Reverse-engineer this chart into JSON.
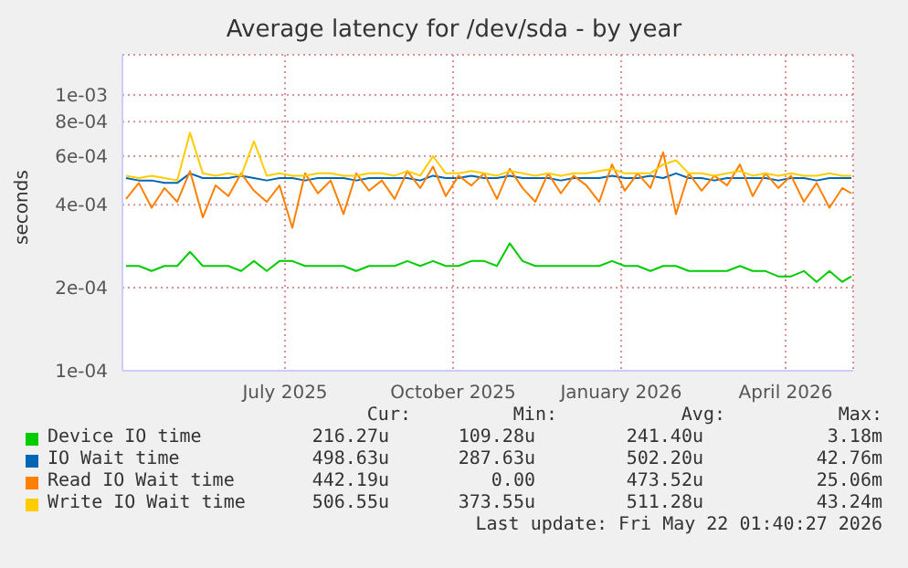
{
  "chart_data": {
    "type": "line",
    "title": "Average latency for /dev/sda - by year",
    "ylabel": "seconds",
    "x": [
      "2025-04-19",
      "2025-04-26",
      "2025-05-03",
      "2025-05-10",
      "2025-05-17",
      "2025-05-24",
      "2025-05-31",
      "2025-06-07",
      "2025-06-14",
      "2025-06-21",
      "2025-06-28",
      "2025-07-05",
      "2025-07-12",
      "2025-07-19",
      "2025-07-26",
      "2025-08-02",
      "2025-08-09",
      "2025-08-16",
      "2025-08-23",
      "2025-08-30",
      "2025-09-06",
      "2025-09-13",
      "2025-09-20",
      "2025-09-27",
      "2025-10-04",
      "2025-10-11",
      "2025-10-18",
      "2025-10-25",
      "2025-11-01",
      "2025-11-08",
      "2025-11-15",
      "2025-11-22",
      "2025-11-29",
      "2025-12-06",
      "2025-12-13",
      "2025-12-20",
      "2025-12-27",
      "2026-01-03",
      "2026-01-10",
      "2026-01-17",
      "2026-01-24",
      "2026-01-31",
      "2026-02-07",
      "2026-02-14",
      "2026-02-21",
      "2026-02-28",
      "2026-03-07",
      "2026-03-14",
      "2026-03-21",
      "2026-03-28",
      "2026-04-04",
      "2026-04-11",
      "2026-04-18",
      "2026-04-25",
      "2026-05-02",
      "2026-05-09",
      "2026-05-16",
      "2026-05-21"
    ],
    "series": [
      {
        "name": "Device IO time",
        "color": "#00cc00",
        "values": [
          0.00024,
          0.00024,
          0.00023,
          0.00024,
          0.00024,
          0.00027,
          0.00024,
          0.00024,
          0.00024,
          0.00023,
          0.00025,
          0.00023,
          0.00025,
          0.00025,
          0.00024,
          0.00024,
          0.00024,
          0.00024,
          0.00023,
          0.00024,
          0.00024,
          0.00024,
          0.00025,
          0.00024,
          0.00025,
          0.00024,
          0.00024,
          0.00025,
          0.00025,
          0.00024,
          0.00029,
          0.00025,
          0.00024,
          0.00024,
          0.00024,
          0.00024,
          0.00024,
          0.00024,
          0.00025,
          0.00024,
          0.00024,
          0.00023,
          0.00024,
          0.00024,
          0.00023,
          0.00023,
          0.00023,
          0.00023,
          0.00024,
          0.00023,
          0.00023,
          0.00022,
          0.00022,
          0.00023,
          0.00021,
          0.00023,
          0.00021,
          0.00022
        ]
      },
      {
        "name": "IO Wait time",
        "color": "#0066b3",
        "values": [
          0.0005,
          0.00049,
          0.00049,
          0.00048,
          0.00048,
          0.00052,
          0.0005,
          0.0005,
          0.0005,
          0.00051,
          0.0005,
          0.00049,
          0.0005,
          0.0005,
          0.00049,
          0.0005,
          0.0005,
          0.0005,
          0.00049,
          0.0005,
          0.0005,
          0.0005,
          0.0005,
          0.00049,
          0.00051,
          0.0005,
          0.0005,
          0.00051,
          0.0005,
          0.0005,
          0.00051,
          0.0005,
          0.0005,
          0.0005,
          0.00049,
          0.0005,
          0.0005,
          0.0005,
          0.00051,
          0.0005,
          0.0005,
          0.00051,
          0.0005,
          0.00052,
          0.0005,
          0.0005,
          0.00049,
          0.0005,
          0.0005,
          0.0005,
          0.0005,
          0.00049,
          0.0005,
          0.0005,
          0.00049,
          0.0005,
          0.0005,
          0.0005
        ]
      },
      {
        "name": "Read IO Wait time",
        "color": "#ff8000",
        "values": [
          0.00042,
          0.00048,
          0.00039,
          0.00046,
          0.00041,
          0.00053,
          0.00036,
          0.00047,
          0.00043,
          0.00052,
          0.00045,
          0.00041,
          0.00047,
          0.00033,
          0.00052,
          0.00044,
          0.00049,
          0.00037,
          0.00052,
          0.00045,
          0.00049,
          0.00042,
          0.00053,
          0.00046,
          0.00055,
          0.00043,
          0.00051,
          0.00047,
          0.00052,
          0.00042,
          0.00054,
          0.00046,
          0.00041,
          0.00052,
          0.00044,
          0.00051,
          0.00047,
          0.00041,
          0.00056,
          0.00045,
          0.00052,
          0.00046,
          0.00062,
          0.00037,
          0.00052,
          0.00045,
          0.00051,
          0.00047,
          0.00056,
          0.00043,
          0.00052,
          0.00046,
          0.00051,
          0.00041,
          0.00048,
          0.00039,
          0.00046,
          0.00044
        ]
      },
      {
        "name": "Write IO Wait time",
        "color": "#ffcc00",
        "values": [
          0.00051,
          0.0005,
          0.00051,
          0.0005,
          0.00049,
          0.00073,
          0.00052,
          0.00051,
          0.00052,
          0.00051,
          0.00068,
          0.00051,
          0.00052,
          0.00051,
          0.00051,
          0.00052,
          0.00052,
          0.00051,
          0.00051,
          0.00052,
          0.00052,
          0.00051,
          0.00053,
          0.00051,
          0.0006,
          0.00052,
          0.00052,
          0.00053,
          0.00052,
          0.00051,
          0.00053,
          0.00052,
          0.00051,
          0.00052,
          0.00051,
          0.00052,
          0.00052,
          0.00053,
          0.00054,
          0.00052,
          0.00052,
          0.00052,
          0.00056,
          0.00058,
          0.00052,
          0.00052,
          0.00051,
          0.00052,
          0.00053,
          0.00051,
          0.00052,
          0.00051,
          0.00052,
          0.00051,
          0.00051,
          0.00052,
          0.00051,
          0.00051
        ]
      }
    ],
    "xlim": [
      "2025-04-17",
      "2026-05-22"
    ],
    "xticks": [
      {
        "value": "2025-07-15",
        "label": "July 2025"
      },
      {
        "value": "2025-10-15",
        "label": "October 2025"
      },
      {
        "value": "2026-01-15",
        "label": "January 2026"
      },
      {
        "value": "2026-04-15",
        "label": "April 2026"
      }
    ],
    "ylim": [
      0.0001,
      0.0014
    ],
    "yticks": [
      {
        "value": 0.0001,
        "label": "1e-04"
      },
      {
        "value": 0.0002,
        "label": "2e-04"
      },
      {
        "value": 0.0004,
        "label": "4e-04"
      },
      {
        "value": 0.0006,
        "label": "6e-04"
      },
      {
        "value": 0.0008,
        "label": "8e-04"
      },
      {
        "value": 0.001,
        "label": "1e-03"
      }
    ],
    "log": true,
    "grid": true,
    "legend": "bottom",
    "marker": "none",
    "line_style": "solid",
    "annotations": [
      "Cur:",
      "Min:",
      "Avg:",
      "Max:",
      "216.27u",
      "109.28u",
      "241.40u",
      "3.18m",
      "498.63u",
      "287.63u",
      "502.20u",
      "42.76m",
      "442.19u",
      "0.00",
      "473.52u",
      "25.06m",
      "506.55u",
      "373.55u",
      "511.28u",
      "43.24m",
      "Last update: Fri May 22 01:40:27 2026"
    ]
  }
}
